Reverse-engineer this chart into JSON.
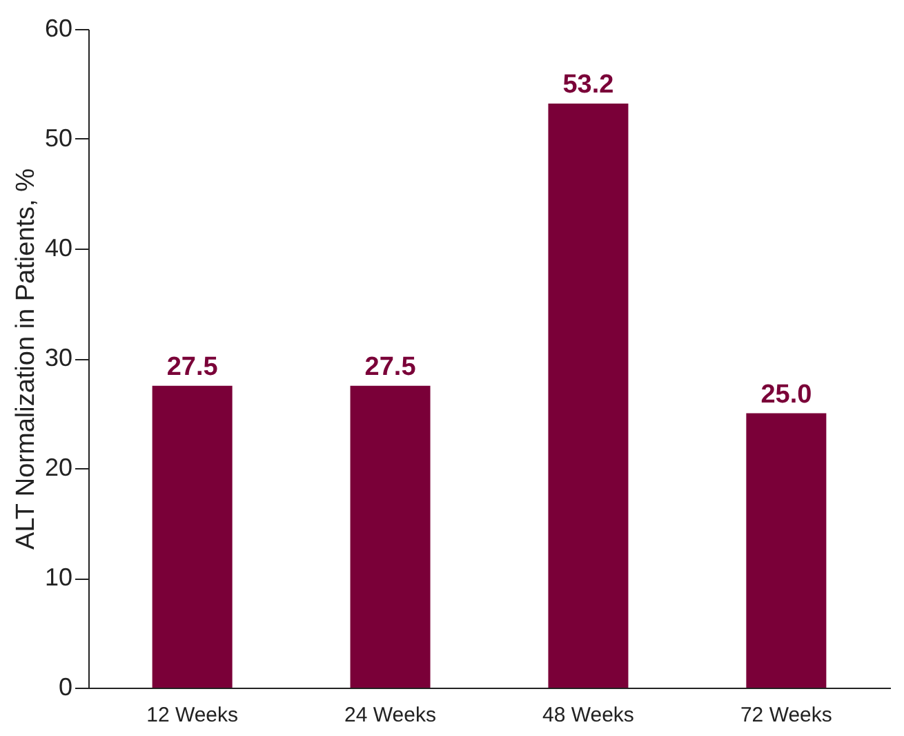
{
  "chart_data": {
    "type": "bar",
    "ylabel": "ALT Normalization in Patients, %",
    "categories": [
      "12 Weeks",
      "24 Weeks",
      "48 Weeks",
      "72 Weeks"
    ],
    "values": [
      27.5,
      27.5,
      53.2,
      25.0
    ],
    "value_labels": [
      "27.5",
      "27.5",
      "53.2",
      "25.0"
    ],
    "color": "#7a0038",
    "ylim": [
      0,
      60
    ],
    "yticks": [
      0,
      10,
      20,
      30,
      40,
      50,
      60
    ],
    "grid": false
  }
}
